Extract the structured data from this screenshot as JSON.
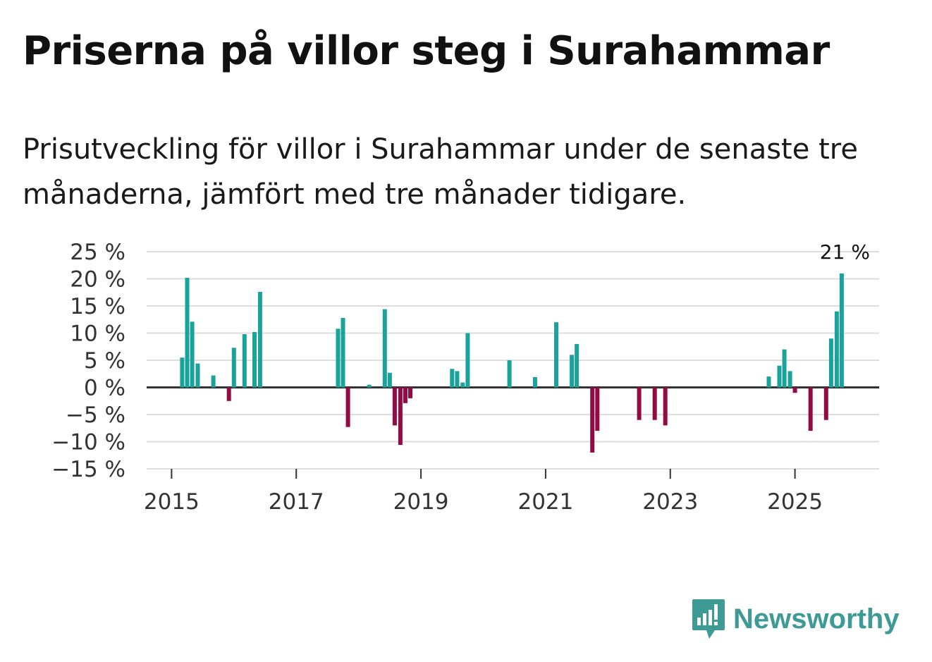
{
  "title": "Priserna på villor steg i Surahammar",
  "subtitle": "Prisutveckling för villor i Surahammar under de senaste tre månaderna, jämfört med tre månader tidigare.",
  "brand": {
    "name": "Newsworthy",
    "color": "#3d9a95",
    "icon": "newsworthy-logo-icon"
  },
  "colors": {
    "positive": "#1aa39a",
    "negative": "#930b43",
    "grid": "#dedede",
    "zero": "#333333"
  },
  "chart_data": {
    "type": "bar",
    "title": "Priserna på villor steg i Surahammar",
    "xlabel": "",
    "ylabel": "",
    "ylim": [
      -15,
      25
    ],
    "yticks": [
      25,
      20,
      15,
      10,
      5,
      0,
      -5,
      -10,
      -15
    ],
    "ytick_labels": [
      "25 %",
      "20 %",
      "15 %",
      "10 %",
      "5 %",
      "0 %",
      "−5 %",
      "−10 %",
      "−15 %"
    ],
    "xticks": [
      2015,
      2017,
      2019,
      2021,
      2023,
      2025
    ],
    "xtick_labels": [
      "2015",
      "2017",
      "2019",
      "2021",
      "2023",
      "2025"
    ],
    "xlim": [
      2014.6,
      2026.35
    ],
    "last_label": "21 %",
    "series": [
      {
        "name": "Prisutveckling",
        "x": [
          2015.17,
          2015.25,
          2015.33,
          2015.42,
          2015.67,
          2015.92,
          2016.0,
          2016.17,
          2016.33,
          2016.42,
          2017.67,
          2017.75,
          2017.83,
          2018.17,
          2018.42,
          2018.5,
          2018.58,
          2018.67,
          2018.75,
          2018.83,
          2019.5,
          2019.58,
          2019.67,
          2019.75,
          2020.42,
          2020.83,
          2021.17,
          2021.42,
          2021.5,
          2021.75,
          2021.83,
          2022.5,
          2022.75,
          2022.92,
          2024.58,
          2024.75,
          2024.83,
          2024.92,
          2025.0,
          2025.25,
          2025.5,
          2025.58,
          2025.67,
          2025.75
        ],
        "values": [
          5.5,
          20.2,
          12.1,
          4.4,
          2.2,
          -2.5,
          7.3,
          9.8,
          10.2,
          17.6,
          10.8,
          12.8,
          -7.3,
          0.5,
          14.4,
          2.7,
          -7.0,
          -10.6,
          -2.9,
          -2.0,
          3.4,
          3.0,
          0.9,
          10.0,
          5.0,
          1.9,
          12.0,
          6.0,
          8.0,
          -12.0,
          -8.0,
          -6.0,
          -6.0,
          -7.0,
          2.0,
          4.0,
          7.0,
          3.0,
          -1.0,
          -8.0,
          -6.0,
          9.0,
          14.0,
          21.0
        ]
      }
    ]
  }
}
